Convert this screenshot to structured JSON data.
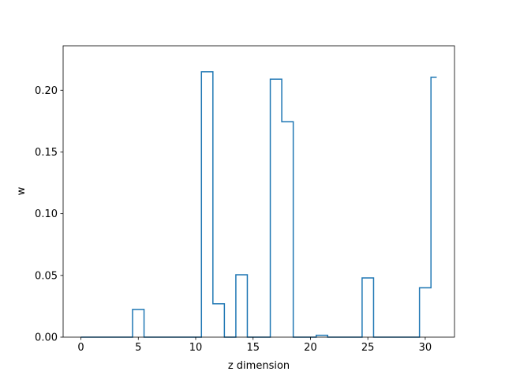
{
  "chart_data": {
    "type": "line",
    "style": "step",
    "xlabel": "z dimension",
    "ylabel": "w",
    "xlim": [
      -1.55,
      32.55
    ],
    "ylim": [
      0,
      0.236
    ],
    "xticks": [
      0,
      5,
      10,
      15,
      20,
      25,
      30
    ],
    "yticks": [
      "0.00",
      "0.05",
      "0.10",
      "0.15",
      "0.20"
    ],
    "yticks_values": [
      0,
      0.05,
      0.1,
      0.15,
      0.2
    ],
    "grid": false,
    "line_color": "#1f77b4",
    "series": [
      {
        "x": [
          0,
          1,
          2,
          3,
          4,
          5,
          6,
          7,
          8,
          9,
          10,
          11,
          12,
          13,
          14,
          15,
          16,
          17,
          18,
          19,
          20,
          21,
          22,
          23,
          24,
          25,
          26,
          27,
          28,
          29,
          30,
          31
        ],
        "values": [
          0,
          0,
          0,
          0,
          0,
          0.0225,
          0,
          0,
          0,
          0,
          0,
          0.215,
          0.027,
          0,
          0.0505,
          0,
          0,
          0.209,
          0.1745,
          0,
          0,
          0.0015,
          0,
          0,
          0,
          0.048,
          0,
          0,
          0,
          0,
          0.04,
          0.2105
        ]
      }
    ]
  }
}
